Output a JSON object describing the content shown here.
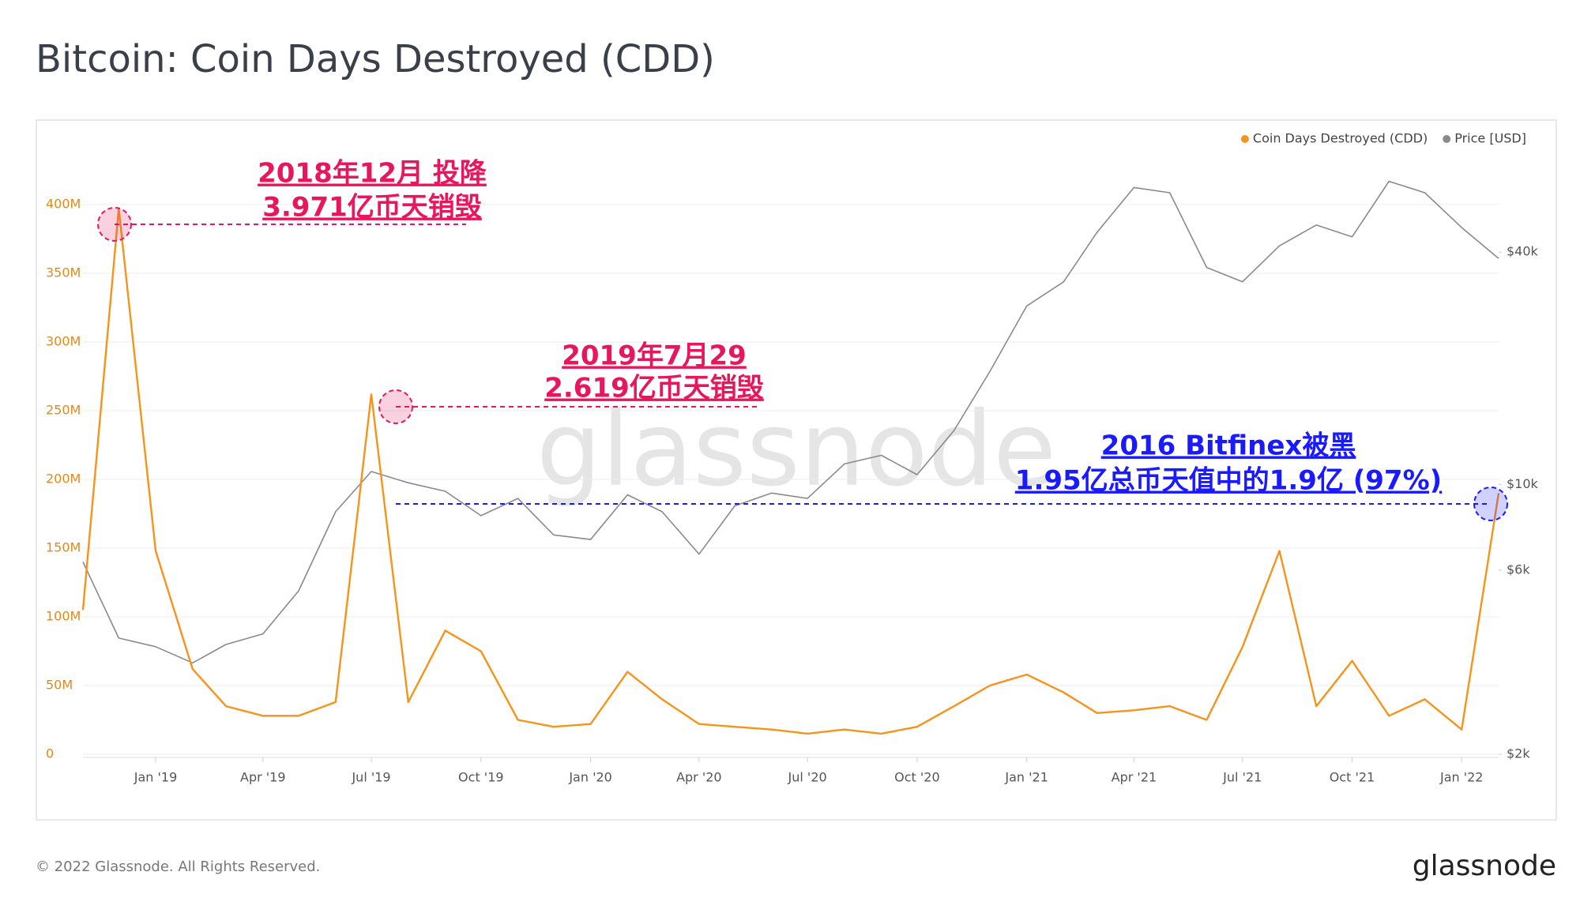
{
  "chart_data": {
    "type": "line",
    "title": "Bitcoin: Coin Days Destroyed (CDD)",
    "x": [
      "2018-11",
      "2018-12",
      "2019-01",
      "2019-02",
      "2019-03",
      "2019-04",
      "2019-05",
      "2019-06",
      "2019-07",
      "2019-08",
      "2019-09",
      "2019-10",
      "2019-11",
      "2019-12",
      "2020-01",
      "2020-02",
      "2020-03",
      "2020-04",
      "2020-05",
      "2020-06",
      "2020-07",
      "2020-08",
      "2020-09",
      "2020-10",
      "2020-11",
      "2020-12",
      "2021-01",
      "2021-02",
      "2021-03",
      "2021-04",
      "2021-05",
      "2021-06",
      "2021-07",
      "2021-08",
      "2021-09",
      "2021-10",
      "2021-11",
      "2021-12",
      "2022-01",
      "2022-02"
    ],
    "xlim": [
      "2018-11",
      "2022-02"
    ],
    "xticks": [
      {
        "value": "2019-01",
        "label": "Jan '19"
      },
      {
        "value": "2019-04",
        "label": "Apr '19"
      },
      {
        "value": "2019-07",
        "label": "Jul '19"
      },
      {
        "value": "2019-10",
        "label": "Oct '19"
      },
      {
        "value": "2020-01",
        "label": "Jan '20"
      },
      {
        "value": "2020-04",
        "label": "Apr '20"
      },
      {
        "value": "2020-07",
        "label": "Jul '20"
      },
      {
        "value": "2020-10",
        "label": "Oct '20"
      },
      {
        "value": "2021-01",
        "label": "Jan '21"
      },
      {
        "value": "2021-04",
        "label": "Apr '21"
      },
      {
        "value": "2021-07",
        "label": "Jul '21"
      },
      {
        "value": "2021-10",
        "label": "Oct '21"
      },
      {
        "value": "2022-01",
        "label": "Jan '22"
      }
    ],
    "ylim": [
      0,
      450000000
    ],
    "yticks": [
      0,
      {
        "value": 50000000,
        "label": "50M"
      },
      {
        "value": 100000000,
        "label": "100M"
      },
      {
        "value": 150000000,
        "label": "150M"
      },
      {
        "value": 200000000,
        "label": "200M"
      },
      {
        "value": 250000000,
        "label": "250M"
      },
      {
        "value": 300000000,
        "label": "300M"
      },
      {
        "value": 350000000,
        "label": "350M"
      },
      {
        "value": 400000000,
        "label": "400M"
      }
    ],
    "y2lim": [
      2000,
      80000
    ],
    "y2_log": true,
    "y2ticks": [
      {
        "value": 2000,
        "label": "$2k"
      },
      {
        "value": 6000,
        "label": "$6k"
      },
      {
        "value": 10000,
        "label": "$10k"
      },
      {
        "value": 40000,
        "label": "$40k"
      }
    ],
    "grid": true,
    "legend": "top-right",
    "series": [
      {
        "name": "Coin Days Destroyed (CDD)",
        "color": "#f7931a",
        "values": [
          105000000,
          397100000,
          148000000,
          62000000,
          35000000,
          28000000,
          28000000,
          38000000,
          261900000,
          38000000,
          90000000,
          75000000,
          25000000,
          20000000,
          22000000,
          60000000,
          40000000,
          22000000,
          20000000,
          18000000,
          15000000,
          18000000,
          15000000,
          20000000,
          35000000,
          50000000,
          58000000,
          45000000,
          30000000,
          32000000,
          35000000,
          25000000,
          78000000,
          148000000,
          35000000,
          68000000,
          28000000,
          40000000,
          18000000,
          190000000
        ]
      },
      {
        "name": "Price [USD]",
        "color": "#8a8a8a",
        "axis": "y2",
        "values": [
          6300,
          4000,
          3800,
          3450,
          3850,
          4100,
          5300,
          8500,
          10800,
          10100,
          9600,
          8300,
          9200,
          7400,
          7200,
          9400,
          8500,
          6600,
          8800,
          9500,
          9200,
          11300,
          11900,
          10600,
          13800,
          19600,
          29000,
          33500,
          45000,
          58800,
          57000,
          36500,
          33500,
          41500,
          47000,
          43800,
          61000,
          57000,
          46300,
          38500
        ]
      }
    ],
    "annotations": [
      {
        "lines": [
          "2018年12月 投降",
          "3.971亿币天销毁"
        ],
        "color": "#e8175d"
      },
      {
        "lines": [
          "2019年7月29",
          "2.619亿币天销毁"
        ],
        "color": "#e8175d"
      },
      {
        "lines": [
          "2016 Bitfinex被黑",
          "1.95亿总币天值中的1.9亿 (97%)"
        ],
        "color": "#1a1aff"
      }
    ],
    "watermark": "glassnode",
    "footer": "© 2022 Glassnode. All Rights Reserved.",
    "logo": "glassnode"
  }
}
